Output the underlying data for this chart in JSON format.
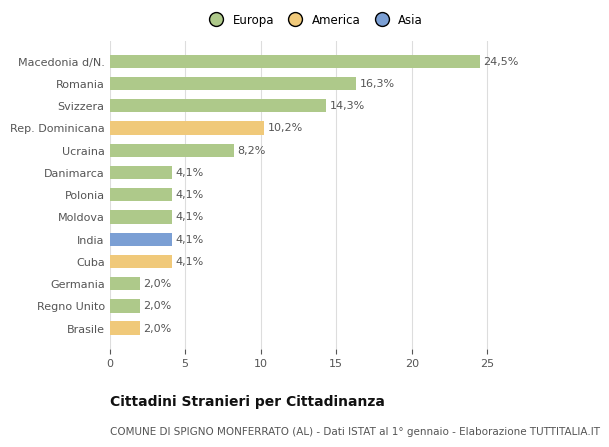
{
  "categories": [
    "Brasile",
    "Regno Unito",
    "Germania",
    "Cuba",
    "India",
    "Moldova",
    "Polonia",
    "Danimarca",
    "Ucraina",
    "Rep. Dominicana",
    "Svizzera",
    "Romania",
    "Macedonia d/N."
  ],
  "values": [
    2.0,
    2.0,
    2.0,
    4.1,
    4.1,
    4.1,
    4.1,
    4.1,
    8.2,
    10.2,
    14.3,
    16.3,
    24.5
  ],
  "labels": [
    "2,0%",
    "2,0%",
    "2,0%",
    "4,1%",
    "4,1%",
    "4,1%",
    "4,1%",
    "4,1%",
    "8,2%",
    "10,2%",
    "14,3%",
    "16,3%",
    "24,5%"
  ],
  "colors": [
    "#f0c97a",
    "#aec98a",
    "#aec98a",
    "#f0c97a",
    "#7b9fd4",
    "#aec98a",
    "#aec98a",
    "#aec98a",
    "#aec98a",
    "#f0c97a",
    "#aec98a",
    "#aec98a",
    "#aec98a"
  ],
  "legend": [
    {
      "label": "Europa",
      "color": "#aec98a"
    },
    {
      "label": "America",
      "color": "#f0c97a"
    },
    {
      "label": "Asia",
      "color": "#7b9fd4"
    }
  ],
  "xlim": [
    0,
    27
  ],
  "xticks": [
    0,
    5,
    10,
    15,
    20,
    25
  ],
  "title": "Cittadini Stranieri per Cittadinanza",
  "subtitle": "COMUNE DI SPIGNO MONFERRATO (AL) - Dati ISTAT al 1° gennaio - Elaborazione TUTTITALIA.IT",
  "bg_color": "#ffffff",
  "bar_height": 0.6,
  "label_fontsize": 8,
  "tick_fontsize": 8,
  "title_fontsize": 10,
  "subtitle_fontsize": 7.5,
  "grid_color": "#dddddd",
  "text_color": "#555555",
  "label_color": "#555555"
}
